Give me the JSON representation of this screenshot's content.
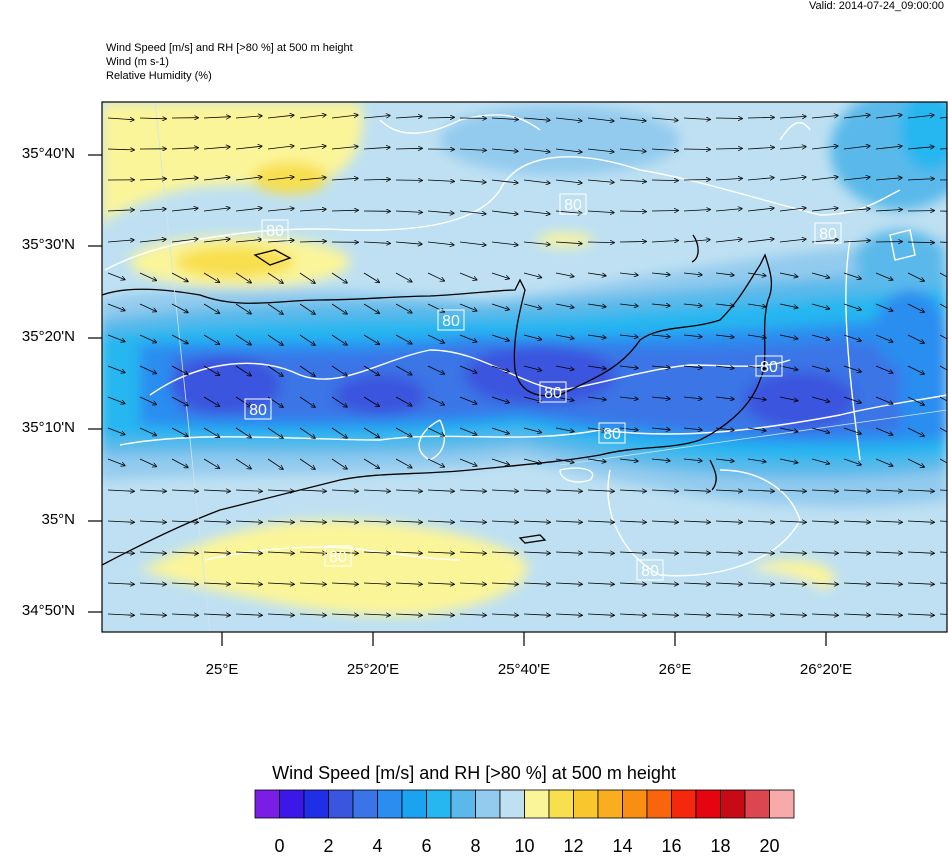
{
  "valid": "Valid: 2014-07-24_09:00:00",
  "header": {
    "line1": "Wind Speed [m/s] and RH [>80 %] at 500 m height",
    "line2": "Wind   (m s-1)",
    "line3": "Relative Humidity   (%)"
  },
  "lat_labels": [
    "35°40'N",
    "35°30'N",
    "35°20'N",
    "35°10'N",
    "35°N",
    "34°50'N"
  ],
  "lon_labels": [
    "25°E",
    "25°20'E",
    "25°40'E",
    "26°E",
    "26°20'E"
  ],
  "contour_labels": [
    "80",
    "80",
    "80",
    "80",
    "80",
    "80",
    "80",
    "80",
    "80",
    "80"
  ],
  "colorbar": {
    "title": "Wind Speed [m/s] and RH [>80 %] at 500 m height",
    "tick_labels": [
      "0",
      "2",
      "4",
      "6",
      "8",
      "10",
      "12",
      "14",
      "16",
      "18",
      "20"
    ],
    "colors": [
      "#7a1ee6",
      "#3b18e8",
      "#1f2fe6",
      "#3a55de",
      "#3a74e6",
      "#2b8df0",
      "#1aa3f0",
      "#26b6f0",
      "#5ab9ea",
      "#93cbee",
      "#bee0f2",
      "#fbf59a",
      "#f8df4e",
      "#f9c62e",
      "#f8ae1e",
      "#f98f12",
      "#f9650c",
      "#f4280c",
      "#e40510",
      "#c80a14",
      "#db4650",
      "#f6aaaa"
    ]
  }
}
